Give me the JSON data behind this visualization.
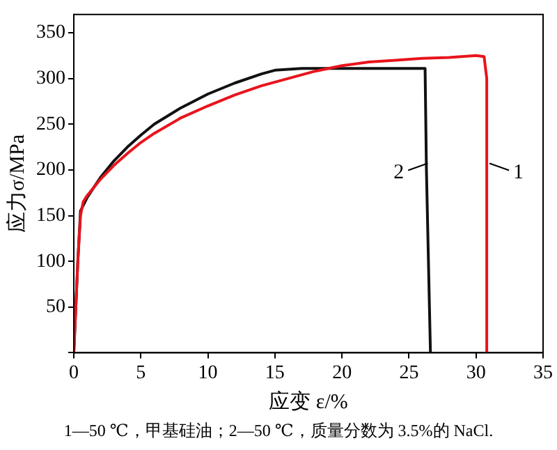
{
  "chart_data": {
    "type": "line",
    "xlabel": "应变 ε/%",
    "ylabel": "应力σ/MPa",
    "xlim": [
      0,
      35
    ],
    "xticks": [
      0,
      5,
      10,
      15,
      20,
      25,
      30,
      35
    ],
    "ylim": [
      0,
      370
    ],
    "yticks": [
      {
        "value": 0,
        "label": null
      },
      50,
      100,
      150,
      200,
      250,
      300,
      350
    ],
    "grid": false,
    "legend": false,
    "marker": "none",
    "line_style": "solid",
    "series": [
      {
        "name": "1",
        "color": "#e8141c",
        "x": [
          0,
          0.3,
          0.5,
          0.7,
          1,
          2,
          3,
          4,
          5,
          6,
          8,
          10,
          12,
          14,
          16,
          18,
          20,
          22,
          24,
          26,
          28,
          30,
          30.6,
          30.8,
          30.8
        ],
        "values": [
          0,
          100,
          150,
          165,
          172,
          190,
          205,
          218,
          230,
          240,
          257,
          270,
          282,
          292,
          300,
          308,
          314,
          318,
          320,
          322,
          323,
          325,
          324,
          300,
          0
        ]
      },
      {
        "name": "2",
        "color": "#111111",
        "x": [
          0,
          0.3,
          0.5,
          1,
          2,
          3,
          4,
          5,
          6,
          8,
          10,
          12,
          14,
          15,
          17,
          20,
          24,
          26.2,
          26.3,
          26.6
        ],
        "values": [
          0,
          100,
          155,
          170,
          192,
          210,
          225,
          238,
          250,
          268,
          283,
          295,
          305,
          309,
          311,
          311,
          311,
          311,
          200,
          0
        ]
      }
    ],
    "annotations": [
      "1—50 ℃，甲基硅油；2—50 ℃，质量分数为 3.5%的 NaCl."
    ]
  }
}
